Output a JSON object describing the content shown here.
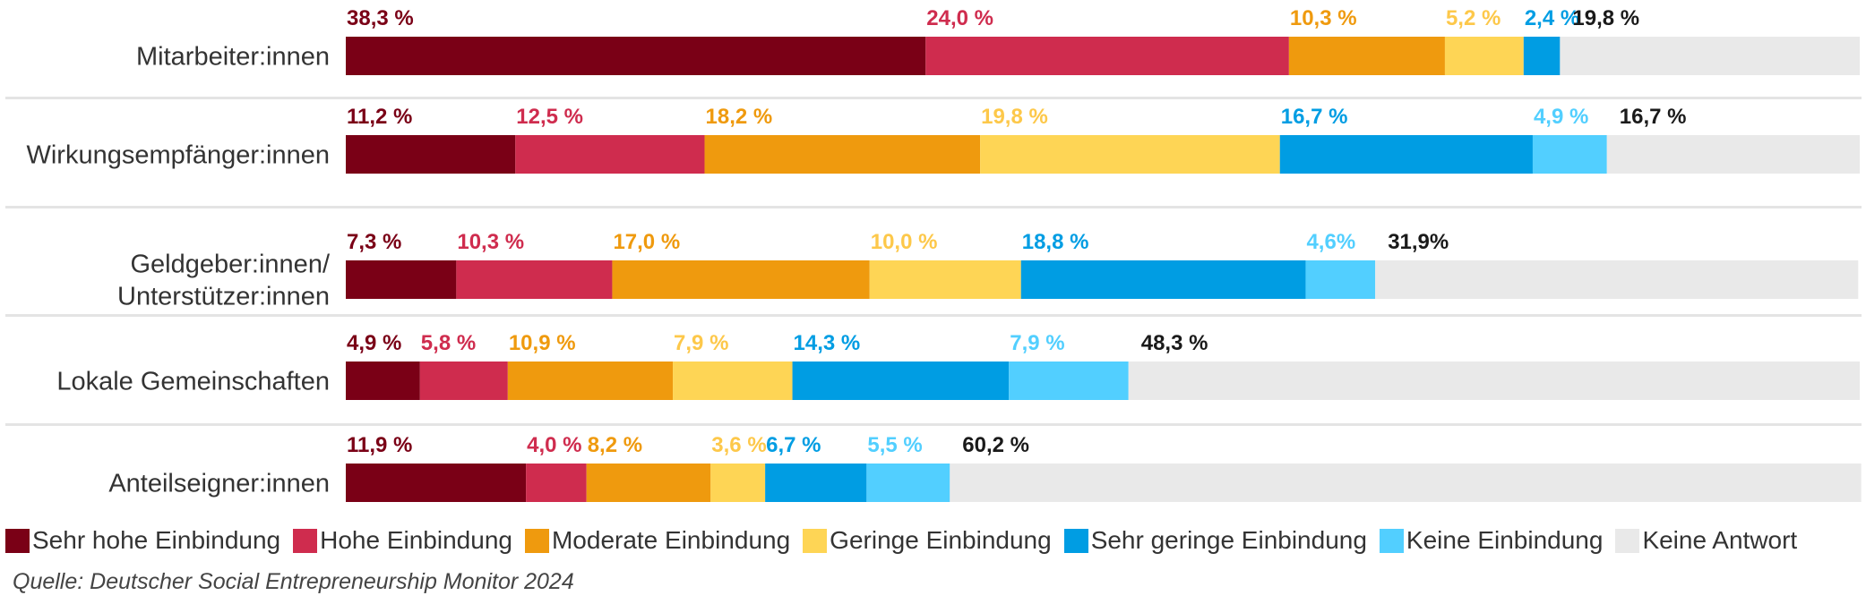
{
  "chart_data": {
    "type": "bar",
    "orientation": "horizontal",
    "stacked": true,
    "percent": true,
    "xlim": [
      0,
      100
    ],
    "grid": false,
    "legend_position": "bottom",
    "title": "",
    "xlabel": "",
    "ylabel": "",
    "categories": [
      [
        "Mitarbeiter:innen"
      ],
      [
        "Wirkungsempfänger:innen"
      ],
      [
        "Geldgeber:innen/",
        "Unterstützer:innen"
      ],
      [
        "Lokale Gemeinschaften"
      ],
      [
        "Anteilseigner:innen"
      ]
    ],
    "series": [
      {
        "name": "Sehr hohe Einbindung",
        "color": "#7A0016",
        "label_color": "#7A0016",
        "values": [
          38.3,
          11.2,
          7.3,
          4.9,
          11.9
        ],
        "labels": [
          "38,3 %",
          "11,2 %",
          "7,3 %",
          "4,9 %",
          "11,9 %"
        ]
      },
      {
        "name": "Hohe Einbindung",
        "color": "#CF2C4E",
        "label_color": "#CF2C4E",
        "values": [
          24.0,
          12.5,
          10.3,
          5.8,
          4.0
        ],
        "labels": [
          "24,0 %",
          "12,5 %",
          "10,3 %",
          "5,8 %",
          "4,0 %"
        ]
      },
      {
        "name": "Moderate Einbindung",
        "color": "#EF9A0E",
        "label_color": "#EF9A0E",
        "values": [
          10.3,
          18.2,
          17.0,
          10.9,
          8.2
        ],
        "labels": [
          "10,3 %",
          "18,2 %",
          "17,0 %",
          "10,9 %",
          "8,2 %"
        ]
      },
      {
        "name": "Geringe Einbindung",
        "color": "#FED555",
        "label_color": "#FDC84A",
        "values": [
          5.2,
          19.8,
          10.0,
          7.9,
          3.6
        ],
        "labels": [
          "5,2 %",
          "19,8 %",
          "10,0 %",
          "7,9 %",
          "3,6 %"
        ]
      },
      {
        "name": "Sehr geringe Einbindung",
        "color": "#009DE3",
        "label_color": "#009DE3",
        "values": [
          2.4,
          16.7,
          18.8,
          14.3,
          6.7
        ],
        "labels": [
          "2,4 %",
          "16,7 %",
          "18,8 %",
          "14,3 %",
          "6,7 %"
        ]
      },
      {
        "name": "Keine Einbindung",
        "color": "#52CFFF",
        "label_color": "#52CFFF",
        "values": [
          0,
          4.9,
          4.6,
          7.9,
          5.5
        ],
        "labels": [
          "",
          "4,9 %",
          "4,6%",
          "7,9 %",
          "5,5 %"
        ]
      },
      {
        "name": "Keine Antwort",
        "color": "#E9E9E9",
        "label_color": "#1A1A1A",
        "values": [
          19.8,
          16.7,
          31.9,
          48.3,
          60.2
        ],
        "labels": [
          "19,8 %",
          "16,7 %",
          "31,9%",
          "48,3 %",
          "60,2 %"
        ]
      }
    ],
    "source": "Quelle: Deutscher Social Entrepreneurship Monitor 2024"
  }
}
